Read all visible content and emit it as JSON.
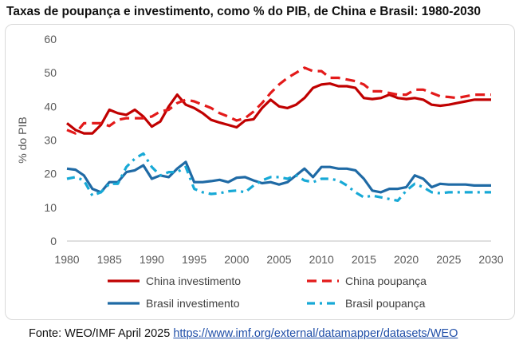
{
  "chart_data": {
    "type": "line",
    "title": "Taxas de poupança e investimento, como % do PIB, de China e Brasil: 1980-2030",
    "xlabel": "",
    "ylabel": "% do PIB",
    "xlim": [
      1980,
      2030
    ],
    "ylim": [
      0,
      60
    ],
    "x_ticks": [
      1980,
      1985,
      1990,
      1995,
      2000,
      2005,
      2010,
      2015,
      2020,
      2025,
      2030
    ],
    "y_ticks": [
      0,
      10,
      20,
      30,
      40,
      50,
      60
    ],
    "grid": false,
    "legend_position": "bottom",
    "x": [
      1980,
      1981,
      1982,
      1983,
      1984,
      1985,
      1986,
      1987,
      1988,
      1989,
      1990,
      1991,
      1992,
      1993,
      1994,
      1995,
      1996,
      1997,
      1998,
      1999,
      2000,
      2001,
      2002,
      2003,
      2004,
      2005,
      2006,
      2007,
      2008,
      2009,
      2010,
      2011,
      2012,
      2013,
      2014,
      2015,
      2016,
      2017,
      2018,
      2019,
      2020,
      2021,
      2022,
      2023,
      2024,
      2025,
      2026,
      2027,
      2028,
      2029,
      2030
    ],
    "series": [
      {
        "name": "China investimento",
        "color": "#c00000",
        "style": "solid",
        "values": [
          35,
          33,
          32,
          32,
          34.5,
          39,
          38,
          37.5,
          39,
          37,
          34,
          35.5,
          40,
          43.5,
          40.5,
          39.5,
          38,
          36,
          35.2,
          34.5,
          33.8,
          35.8,
          36.2,
          39.5,
          42,
          40,
          39.5,
          40.5,
          42.5,
          45.5,
          46.5,
          46.8,
          46,
          46,
          45.5,
          42.5,
          42.2,
          42.5,
          43.5,
          42.5,
          42.2,
          42.5,
          42,
          40.5,
          40.2,
          40.5,
          41,
          41.5,
          42,
          42,
          42
        ]
      },
      {
        "name": "China poupança",
        "color": "#e31a1a",
        "style": "dashed",
        "values": [
          33,
          32,
          35,
          35,
          35,
          34.2,
          36,
          36.5,
          36.5,
          36.5,
          37,
          38.5,
          39,
          41,
          42,
          41.5,
          40.5,
          39.5,
          38,
          37,
          35.8,
          36.5,
          38.5,
          41,
          44,
          46.5,
          48.5,
          50,
          51.5,
          50.5,
          50.5,
          48.5,
          48.5,
          48,
          47.5,
          46.5,
          44.5,
          44.5,
          44,
          43.5,
          43.5,
          45,
          45,
          44,
          43,
          42.8,
          42.5,
          43,
          43.5,
          43.5,
          43.5
        ]
      },
      {
        "name": "Brasil investimento",
        "color": "#1f6aa5",
        "style": "solid",
        "values": [
          21.5,
          21.2,
          19.5,
          15.5,
          14.5,
          17.5,
          17.5,
          20.5,
          21,
          22.5,
          18.5,
          19.5,
          19,
          21.5,
          23.5,
          17.5,
          17.5,
          17.8,
          18.2,
          17.5,
          18.8,
          19,
          18,
          17.2,
          17.5,
          16.8,
          17.5,
          19.5,
          21.5,
          19,
          22,
          22,
          21.5,
          21.5,
          21,
          18.5,
          15,
          14.5,
          15.5,
          15.5,
          16,
          19.5,
          18.5,
          16,
          17,
          16.8,
          16.8,
          16.8,
          16.5,
          16.5,
          16.5
        ]
      },
      {
        "name": "Brasil poupança",
        "color": "#17a9d6",
        "style": "dashdot",
        "values": [
          18.5,
          19,
          18,
          13.5,
          14.5,
          17,
          17,
          22,
          24.5,
          26,
          22,
          19.5,
          20.5,
          20.5,
          22,
          15.5,
          14.5,
          14,
          14.2,
          14.8,
          15,
          14.5,
          16.5,
          18,
          19,
          19,
          18.5,
          19.5,
          18,
          17.5,
          18.5,
          18.5,
          18,
          16.5,
          14.5,
          13,
          13.5,
          13,
          12.5,
          12,
          15,
          17,
          16,
          14.5,
          14.2,
          14.5,
          14.5,
          14.5,
          14.5,
          14.5,
          14.5
        ]
      }
    ]
  },
  "source": {
    "label": "Fonte: WEO/IMF April 2025",
    "url": "https://www.imf.org/external/datamapper/datasets/WEO"
  }
}
